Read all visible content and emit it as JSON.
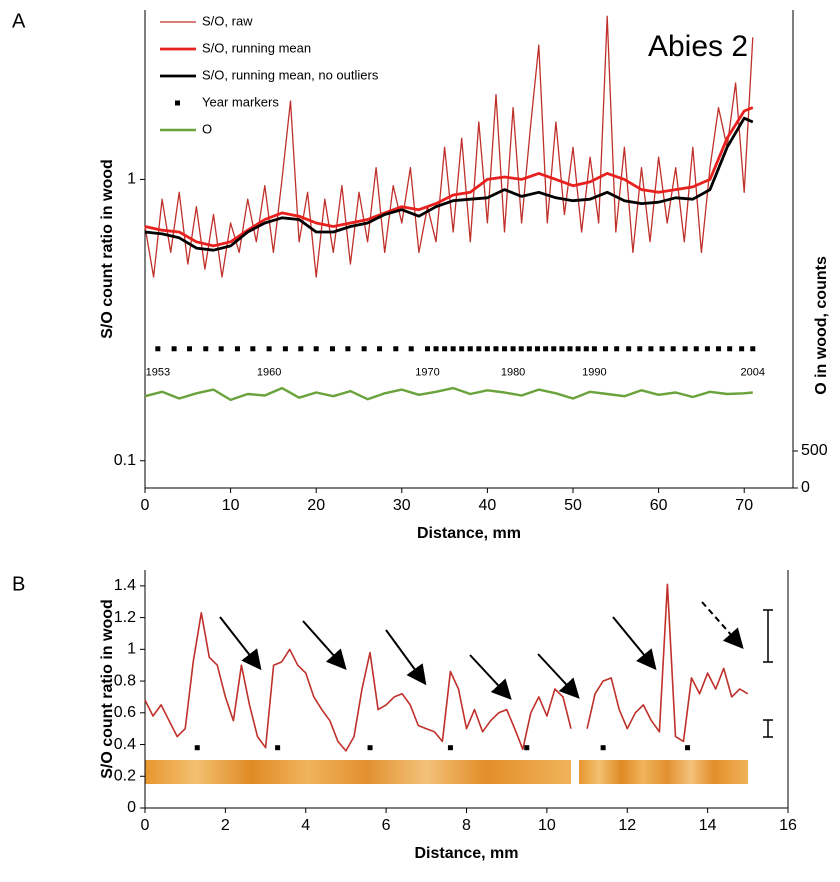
{
  "chart_data": [
    {
      "type": "line",
      "panel": "A",
      "annotation": "Abies 2",
      "x_label": "Distance, mm",
      "y_label": "S/O count ratio in wood",
      "y2_label": "O in wood, counts",
      "xlim": [
        0,
        75.7
      ],
      "xticks": [
        0,
        10,
        20,
        30,
        40,
        50,
        60,
        70
      ],
      "ylim": [
        0.08,
        4
      ],
      "yticks": [
        0.1,
        1
      ],
      "log_y": true,
      "y2lim": [
        0,
        6460
      ],
      "y2ticks": [
        0,
        500
      ],
      "legend": true,
      "series": [
        {
          "name": "S/O, raw",
          "color": "#c0302a",
          "style": "line",
          "linewidth": 1.3,
          "x": [
            0,
            1,
            2,
            3,
            4,
            5,
            6,
            7,
            8,
            9,
            10,
            11,
            12,
            13,
            14,
            15,
            16,
            17,
            18,
            19,
            20,
            21,
            22,
            23,
            24,
            25,
            26,
            27,
            28,
            29,
            30,
            31,
            32,
            33,
            34,
            35,
            36,
            37,
            38,
            39,
            40,
            41,
            42,
            43,
            44,
            45,
            46,
            47,
            48,
            49,
            50,
            51,
            52,
            53,
            54,
            55,
            56,
            57,
            58,
            59,
            60,
            61,
            62,
            63,
            64,
            65,
            66,
            67,
            68,
            69,
            70,
            71
          ],
          "values": [
            0.68,
            0.45,
            0.85,
            0.55,
            0.9,
            0.5,
            0.8,
            0.48,
            0.75,
            0.45,
            0.7,
            0.55,
            0.85,
            0.6,
            0.95,
            0.55,
            1.0,
            1.9,
            0.6,
            0.9,
            0.45,
            0.85,
            0.55,
            0.95,
            0.5,
            0.9,
            0.6,
            1.1,
            0.55,
            0.95,
            0.7,
            1.1,
            0.55,
            0.8,
            0.6,
            1.3,
            0.65,
            1.4,
            0.6,
            1.6,
            0.7,
            2.0,
            0.65,
            1.8,
            0.7,
            1.5,
            3.0,
            0.7,
            1.6,
            0.75,
            1.3,
            0.65,
            1.2,
            0.7,
            3.8,
            0.65,
            1.3,
            0.55,
            1.1,
            0.6,
            1.2,
            0.7,
            1.1,
            0.6,
            1.3,
            0.55,
            1.1,
            1.8,
            1.3,
            2.2,
            0.9,
            3.2
          ]
        },
        {
          "name": "S/O, running mean",
          "color": "#e8201e",
          "style": "line",
          "linewidth": 2.8,
          "x": [
            0,
            2,
            4,
            6,
            8,
            10,
            12,
            14,
            16,
            18,
            20,
            22,
            24,
            26,
            28,
            30,
            32,
            34,
            36,
            38,
            40,
            42,
            44,
            46,
            48,
            50,
            52,
            54,
            56,
            58,
            60,
            62,
            64,
            66,
            68,
            70,
            71
          ],
          "values": [
            0.68,
            0.66,
            0.65,
            0.6,
            0.58,
            0.6,
            0.66,
            0.72,
            0.76,
            0.74,
            0.7,
            0.68,
            0.7,
            0.72,
            0.76,
            0.8,
            0.78,
            0.82,
            0.88,
            0.9,
            1.0,
            1.02,
            1.0,
            1.05,
            1.0,
            0.95,
            0.98,
            1.05,
            1.0,
            0.92,
            0.9,
            0.92,
            0.94,
            1.0,
            1.4,
            1.75,
            1.8
          ]
        },
        {
          "name": "S/O, running mean, no outliers",
          "color": "#000000",
          "style": "line",
          "linewidth": 2.8,
          "x": [
            0,
            2,
            4,
            6,
            8,
            10,
            12,
            14,
            16,
            18,
            20,
            22,
            24,
            26,
            28,
            30,
            32,
            34,
            36,
            38,
            40,
            42,
            44,
            46,
            48,
            50,
            52,
            54,
            56,
            58,
            60,
            62,
            64,
            66,
            68,
            70,
            71
          ],
          "values": [
            0.65,
            0.64,
            0.62,
            0.57,
            0.56,
            0.58,
            0.65,
            0.7,
            0.73,
            0.72,
            0.65,
            0.65,
            0.68,
            0.7,
            0.75,
            0.78,
            0.74,
            0.8,
            0.84,
            0.85,
            0.86,
            0.92,
            0.87,
            0.9,
            0.86,
            0.84,
            0.85,
            0.9,
            0.84,
            0.82,
            0.83,
            0.86,
            0.85,
            0.92,
            1.3,
            1.65,
            1.6
          ]
        },
        {
          "name": "Year markers",
          "color": "#000000",
          "style": "markers",
          "x": [
            1.5,
            3.4,
            5.2,
            7.1,
            8.9,
            10.8,
            12.6,
            14.5,
            16.4,
            18.2,
            20.0,
            21.9,
            23.7,
            25.6,
            27.4,
            29.3,
            31.1,
            33.0,
            34,
            35,
            36,
            37,
            38,
            39,
            40,
            41,
            42,
            43,
            43.95,
            44.9,
            45.85,
            46.8,
            47.75,
            48.7,
            49.65,
            50.6,
            51.55,
            52.5,
            53.8,
            55.1,
            56.5,
            57.8,
            59.1,
            60.4,
            61.7,
            63.1,
            64.4,
            65.7,
            67.0,
            68.3,
            69.7,
            71.0
          ],
          "values": [
            0.25,
            0.25,
            0.25,
            0.25,
            0.25,
            0.25,
            0.25,
            0.25,
            0.25,
            0.25,
            0.25,
            0.25,
            0.25,
            0.25,
            0.25,
            0.25,
            0.25,
            0.25,
            0.25,
            0.25,
            0.25,
            0.25,
            0.25,
            0.25,
            0.25,
            0.25,
            0.25,
            0.25,
            0.25,
            0.25,
            0.25,
            0.25,
            0.25,
            0.25,
            0.25,
            0.25,
            0.25,
            0.25,
            0.25,
            0.25,
            0.25,
            0.25,
            0.25,
            0.25,
            0.25,
            0.25,
            0.25,
            0.25,
            0.25,
            0.25,
            0.25,
            0.25
          ]
        },
        {
          "name": "O",
          "color": "#6aa23c",
          "style": "line",
          "linewidth": 2.4,
          "axis": "y2",
          "x": [
            0,
            2,
            4,
            6,
            8,
            10,
            12,
            14,
            16,
            18,
            20,
            22,
            24,
            26,
            28,
            30,
            32,
            34,
            36,
            38,
            40,
            42,
            44,
            46,
            48,
            50,
            52,
            54,
            56,
            58,
            60,
            62,
            64,
            66,
            68,
            70,
            71
          ],
          "values": [
            1240,
            1300,
            1210,
            1280,
            1330,
            1190,
            1270,
            1250,
            1350,
            1220,
            1290,
            1240,
            1310,
            1200,
            1280,
            1330,
            1260,
            1300,
            1350,
            1270,
            1320,
            1290,
            1250,
            1330,
            1280,
            1210,
            1300,
            1270,
            1240,
            1320,
            1260,
            1290,
            1230,
            1300,
            1270,
            1280,
            1290
          ]
        }
      ],
      "year_labels": [
        {
          "value": 1.5,
          "label": "1953"
        },
        {
          "value": 14.5,
          "label": "1960"
        },
        {
          "value": 33,
          "label": "1970"
        },
        {
          "value": 43,
          "label": "1980"
        },
        {
          "value": 52.5,
          "label": "1990"
        },
        {
          "value": 71,
          "label": "2004"
        }
      ]
    },
    {
      "type": "line",
      "panel": "B",
      "x_label": "Distance, mm",
      "y_label": "S/O count ratio in wood",
      "xlim": [
        0,
        16
      ],
      "xticks": [
        0,
        2,
        4,
        6,
        8,
        10,
        12,
        14,
        16
      ],
      "ylim": [
        0,
        1.5
      ],
      "yticks": [
        0,
        0.2,
        0.4,
        0.6,
        0.8,
        1,
        1.2,
        1.4
      ],
      "legend": false,
      "series": [
        {
          "color": "#c0302a",
          "style": "line",
          "linewidth": 1.6,
          "x": [
            0,
            0.2,
            0.4,
            0.6,
            0.8,
            1,
            1.2,
            1.4,
            1.6,
            1.8,
            2,
            2.2,
            2.4,
            2.6,
            2.8,
            3,
            3.2,
            3.4,
            3.6,
            3.8,
            4,
            4.2,
            4.4,
            4.6,
            4.8,
            5,
            5.2,
            5.4,
            5.6,
            5.8,
            6,
            6.2,
            6.4,
            6.6,
            6.8,
            7,
            7.2,
            7.4,
            7.6,
            7.8,
            8,
            8.2,
            8.4,
            8.6,
            8.8,
            9,
            9.2,
            9.4,
            9.6,
            9.8,
            10,
            10.2,
            10.4,
            10.6,
            10.8,
            11,
            11.2,
            11.4,
            11.6,
            11.8,
            12,
            12.2,
            12.4,
            12.6,
            12.8,
            13,
            13.2,
            13.4,
            13.6,
            13.8,
            14,
            14.2,
            14.4,
            14.6,
            14.8,
            15
          ],
          "values": [
            0.68,
            0.58,
            0.65,
            0.55,
            0.45,
            0.5,
            0.92,
            1.23,
            0.95,
            0.9,
            0.7,
            0.55,
            0.9,
            0.65,
            0.45,
            0.38,
            0.9,
            0.92,
            1.0,
            0.9,
            0.85,
            0.7,
            0.62,
            0.55,
            0.42,
            0.36,
            0.45,
            0.75,
            0.98,
            0.62,
            0.65,
            0.7,
            0.72,
            0.65,
            0.52,
            0.5,
            0.48,
            0.42,
            0.86,
            0.75,
            0.5,
            0.62,
            0.48,
            0.55,
            0.6,
            0.62,
            0.5,
            0.37,
            0.6,
            0.7,
            0.58,
            0.75,
            0.7,
            0.5,
            null,
            0.5,
            0.72,
            0.8,
            0.82,
            0.62,
            0.5,
            0.6,
            0.65,
            0.55,
            0.48,
            1.41,
            0.45,
            0.42,
            0.82,
            0.72,
            0.85,
            0.75,
            0.88,
            0.7,
            0.75,
            0.72
          ]
        },
        {
          "color": "#000000",
          "style": "markers",
          "x": [
            1.3,
            3.3,
            5.6,
            7.6,
            9.5,
            11.4,
            13.5
          ],
          "values": [
            0.38,
            0.38,
            0.38,
            0.38,
            0.38,
            0.38,
            0.38
          ]
        }
      ]
    }
  ]
}
